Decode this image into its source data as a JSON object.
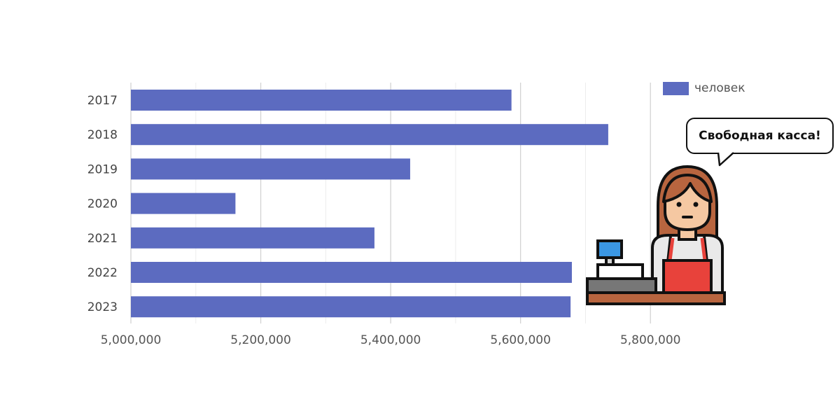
{
  "chart_data": {
    "type": "bar",
    "orientation": "horizontal",
    "categories": [
      "2017",
      "2018",
      "2019",
      "2020",
      "2021",
      "2022",
      "2023"
    ],
    "series": [
      {
        "name": "человек",
        "values": [
          5586000,
          5735000,
          5430000,
          5161000,
          5375000,
          5679000,
          5677000
        ],
        "color": "#5c6bc0"
      }
    ],
    "xlim": [
      5000000,
      5900000
    ],
    "xticks": [
      "5,000,000",
      "5,200,000",
      "5,400,000",
      "5,600,000",
      "5,800,000"
    ],
    "xtick_values": [
      5000000,
      5200000,
      5400000,
      5600000,
      5800000
    ],
    "grid": true,
    "legend_position": "top-right"
  },
  "illustration": {
    "speech_bubble_text": "Свободная касса!",
    "icon": "cashier-at-register-icon"
  }
}
